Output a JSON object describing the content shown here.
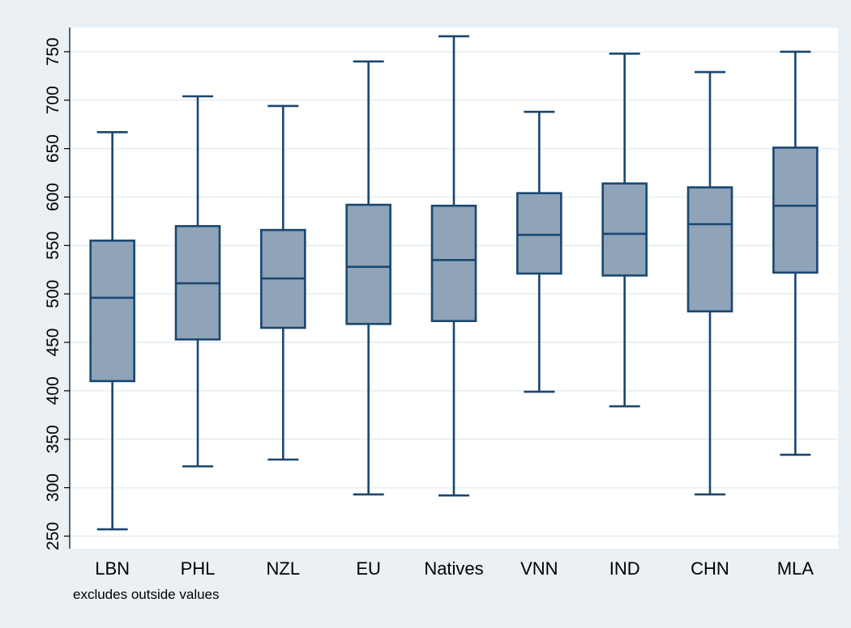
{
  "chart_data": {
    "type": "box",
    "categories": [
      "LBN",
      "PHL",
      "NZL",
      "EU",
      "Natives",
      "VNN",
      "IND",
      "CHN",
      "MLA"
    ],
    "boxes": [
      {
        "category": "LBN",
        "whisker_low": 257,
        "q1": 410,
        "median": 496,
        "q3": 555,
        "whisker_high": 667
      },
      {
        "category": "PHL",
        "whisker_low": 322,
        "q1": 453,
        "median": 511,
        "q3": 570,
        "whisker_high": 704
      },
      {
        "category": "NZL",
        "whisker_low": 329,
        "q1": 465,
        "median": 516,
        "q3": 566,
        "whisker_high": 694
      },
      {
        "category": "EU",
        "whisker_low": 293,
        "q1": 469,
        "median": 528,
        "q3": 592,
        "whisker_high": 740
      },
      {
        "category": "Natives",
        "whisker_low": 292,
        "q1": 472,
        "median": 535,
        "q3": 591,
        "whisker_high": 766
      },
      {
        "category": "VNN",
        "whisker_low": 399,
        "q1": 521,
        "median": 561,
        "q3": 604,
        "whisker_high": 688
      },
      {
        "category": "IND",
        "whisker_low": 384,
        "q1": 519,
        "median": 562,
        "q3": 614,
        "whisker_high": 748
      },
      {
        "category": "CHN",
        "whisker_low": 293,
        "q1": 482,
        "median": 572,
        "q3": 610,
        "whisker_high": 729
      },
      {
        "category": "MLA",
        "whisker_low": 334,
        "q1": 522,
        "median": 591,
        "q3": 651,
        "whisker_high": 750
      }
    ],
    "y_ticks": [
      250,
      300,
      350,
      400,
      450,
      500,
      550,
      600,
      650,
      700,
      750
    ],
    "ylim": [
      237,
      775
    ],
    "grid": true,
    "note": "excludes outside values",
    "colors": {
      "background": "#eaf0f4",
      "plot_area": "#ffffff",
      "box_fill": "#8fa3b9",
      "box_stroke": "#1a476f",
      "gridline": "#eaf0f4",
      "axis": "#000000"
    }
  }
}
